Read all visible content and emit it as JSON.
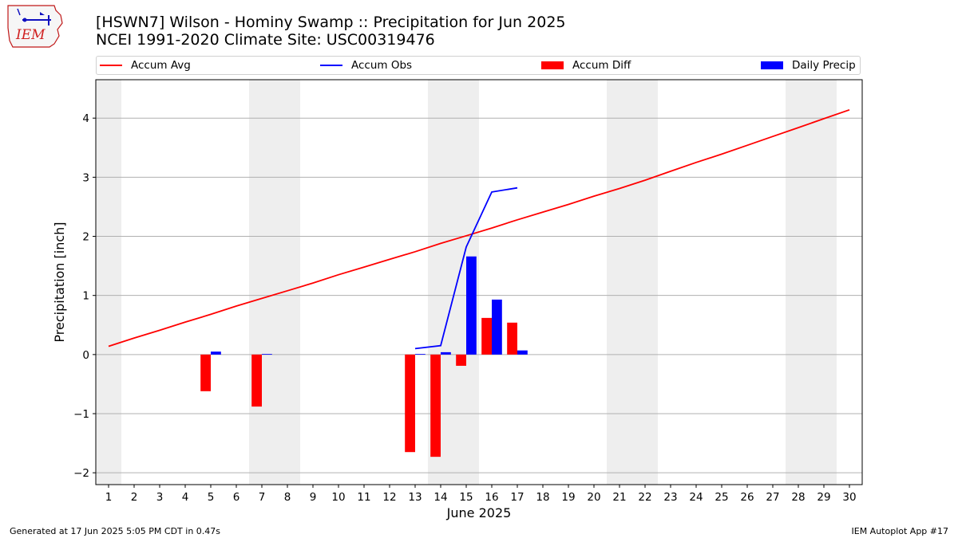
{
  "logo_text": "IEM",
  "title_line1": "[HSWN7] Wilson - Hominy Swamp :: Precipitation for Jun 2025",
  "title_line2": "NCEI 1991-2020 Climate Site: USC00319476",
  "footer_left": "Generated at 17 Jun 2025 5:05 PM CDT in 0.47s",
  "footer_right": "IEM Autoplot App #17",
  "legend": [
    {
      "label": "Accum Avg",
      "kind": "line",
      "color": "#ff0000"
    },
    {
      "label": "Accum Obs",
      "kind": "line",
      "color": "#0000ff"
    },
    {
      "label": "Accum Diff",
      "kind": "patch",
      "color": "#ff0000"
    },
    {
      "label": "Daily Precip",
      "kind": "patch",
      "color": "#0000ff"
    }
  ],
  "chart_data": {
    "type": "bar",
    "xlabel": "June 2025",
    "ylabel": "Precipitation [inch]",
    "x": [
      1,
      2,
      3,
      4,
      5,
      6,
      7,
      8,
      9,
      10,
      11,
      12,
      13,
      14,
      15,
      16,
      17,
      18,
      19,
      20,
      21,
      22,
      23,
      24,
      25,
      26,
      27,
      28,
      29,
      30
    ],
    "xlim": [
      0.5,
      30.5
    ],
    "ylim": [
      -2.2,
      4.65
    ],
    "yticks": [
      -2,
      -1,
      0,
      1,
      2,
      3,
      4
    ],
    "ytick_labels": [
      "−2",
      "−1",
      "0",
      "1",
      "2",
      "3",
      "4"
    ],
    "weekend_days": [
      1,
      7,
      8,
      14,
      15,
      21,
      22,
      28,
      29
    ],
    "grid": "horizontal",
    "legend_position": "top",
    "series": [
      {
        "name": "Accum Avg",
        "kind": "line",
        "color": "#ff0000",
        "x": [
          1,
          2,
          3,
          4,
          5,
          6,
          7,
          8,
          9,
          10,
          11,
          12,
          13,
          14,
          15,
          16,
          17,
          18,
          19,
          20,
          21,
          22,
          23,
          24,
          25,
          26,
          27,
          28,
          29,
          30
        ],
        "values": [
          0.14,
          0.28,
          0.41,
          0.55,
          0.68,
          0.82,
          0.95,
          1.08,
          1.21,
          1.35,
          1.48,
          1.61,
          1.74,
          1.88,
          2.01,
          2.14,
          2.28,
          2.41,
          2.54,
          2.68,
          2.81,
          2.95,
          3.1,
          3.25,
          3.39,
          3.54,
          3.69,
          3.84,
          3.99,
          4.14
        ]
      },
      {
        "name": "Accum Obs",
        "kind": "line",
        "color": "#0000ff",
        "x": [
          13,
          14,
          15,
          16,
          17
        ],
        "values": [
          0.1,
          0.15,
          1.82,
          2.75,
          2.82
        ]
      },
      {
        "name": "Accum Diff",
        "kind": "bar",
        "color": "#ff0000",
        "x": [
          5,
          7,
          13,
          14,
          15,
          16,
          17
        ],
        "values": [
          -0.62,
          -0.88,
          -1.65,
          -1.73,
          -0.19,
          0.62,
          0.54
        ]
      },
      {
        "name": "Daily Precip",
        "kind": "bar",
        "color": "#0000ff",
        "x": [
          5,
          7,
          13,
          14,
          15,
          16,
          17
        ],
        "values": [
          0.05,
          0.01,
          0.01,
          0.04,
          1.66,
          0.93,
          0.07
        ]
      }
    ]
  }
}
